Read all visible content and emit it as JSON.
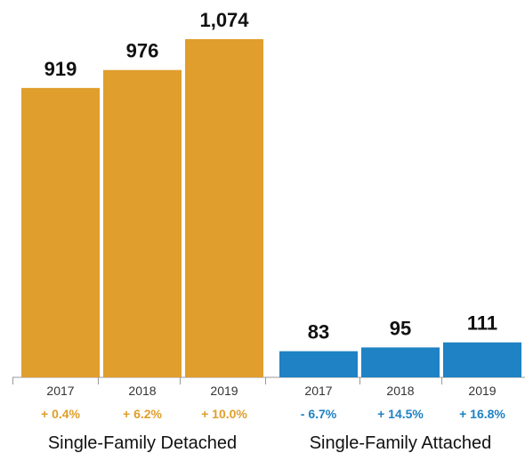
{
  "chart_data": [
    {
      "type": "bar",
      "group_label": "Single-Family Detached",
      "categories": [
        "2017",
        "2018",
        "2019"
      ],
      "values": [
        919,
        976,
        1074
      ],
      "value_labels": [
        "919",
        "976",
        "1,074"
      ],
      "changes": [
        "+ 0.4%",
        "+ 6.2%",
        "+ 10.0%"
      ],
      "color": "#E09E2C"
    },
    {
      "type": "bar",
      "group_label": "Single-Family Attached",
      "categories": [
        "2017",
        "2018",
        "2019"
      ],
      "values": [
        83,
        95,
        111
      ],
      "value_labels": [
        "83",
        "95",
        "111"
      ],
      "changes": [
        "- 6.7%",
        "+ 14.5%",
        "+ 16.8%"
      ],
      "color": "#1E82C4"
    }
  ],
  "axis": {
    "ylim": [
      0,
      1074
    ],
    "grid": false,
    "legend": "none"
  }
}
